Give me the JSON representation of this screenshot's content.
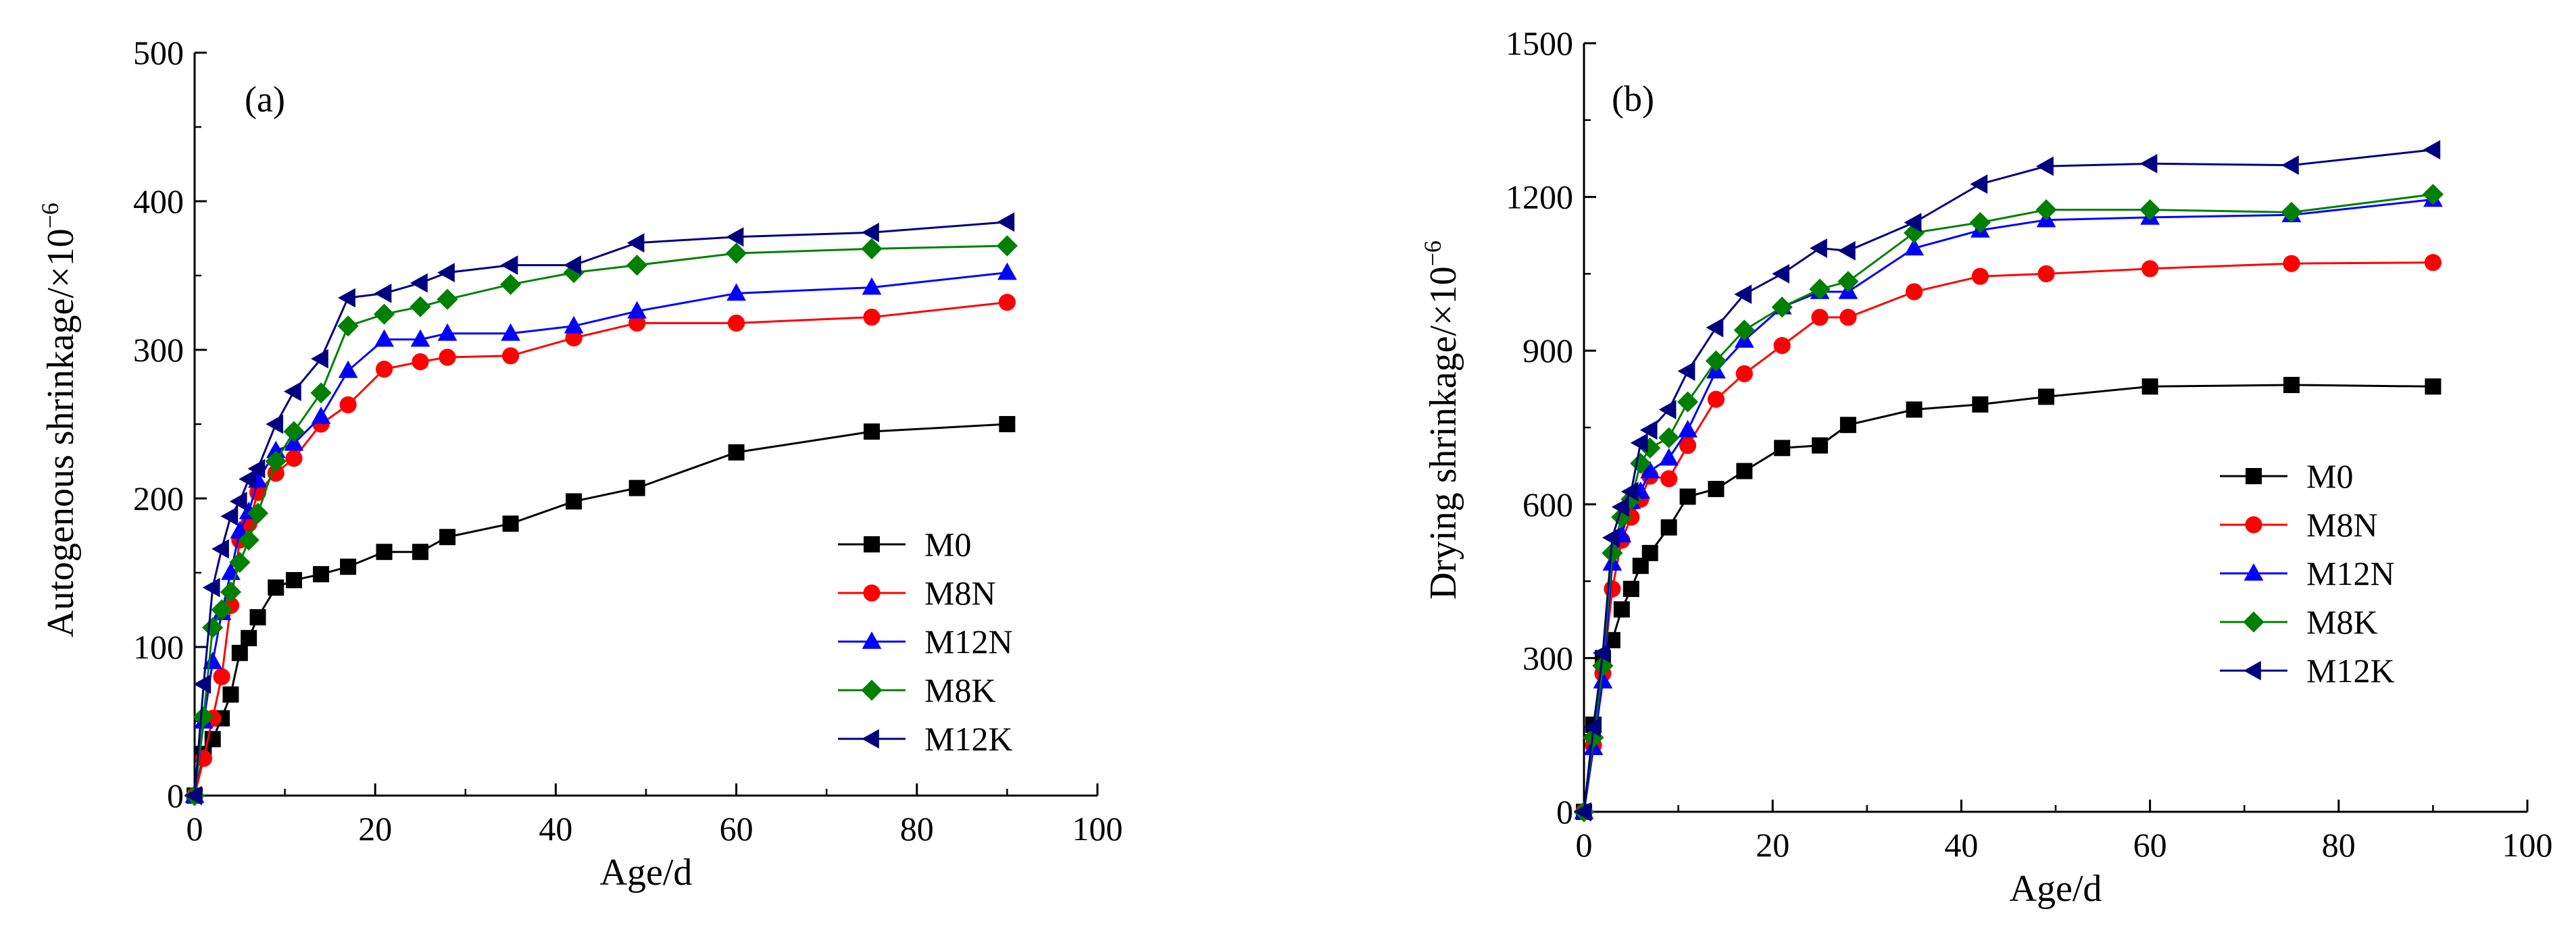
{
  "chart_data": [
    {
      "type": "line",
      "panel_label": "(a)",
      "xlabel": "Age/d",
      "ylabel": "Autogenous shrinkage/×10",
      "ylabel_exponent": "−6",
      "xlim": [
        0,
        100
      ],
      "ylim": [
        0,
        500
      ],
      "xticks": [
        0,
        20,
        40,
        60,
        80,
        100
      ],
      "yticks": [
        0,
        100,
        200,
        300,
        400,
        500
      ],
      "legend_position": "bottom-right",
      "series": [
        {
          "name": "M0",
          "color": "#000000",
          "marker": "square",
          "x": [
            0,
            1,
            2,
            3,
            4,
            5,
            6,
            7,
            9,
            11,
            14,
            17,
            21,
            25,
            28,
            35,
            42,
            49,
            60,
            75,
            90
          ],
          "y": [
            0,
            28,
            38,
            52,
            68,
            96,
            106,
            120,
            140,
            145,
            149,
            154,
            164,
            164,
            174,
            183,
            198,
            207,
            231,
            245,
            250
          ]
        },
        {
          "name": "M8N",
          "color": "#ff0000",
          "marker": "circle",
          "x": [
            0,
            1,
            2,
            3,
            4,
            5,
            6,
            7,
            9,
            11,
            14,
            17,
            21,
            25,
            28,
            35,
            42,
            49,
            60,
            75,
            90
          ],
          "y": [
            0,
            25,
            52,
            80,
            128,
            172,
            183,
            204,
            217,
            227,
            250,
            263,
            287,
            292,
            295,
            296,
            308,
            318,
            318,
            322,
            332
          ]
        },
        {
          "name": "M12N",
          "color": "#0000ff",
          "marker": "triangle",
          "x": [
            0,
            1,
            2,
            3,
            4,
            5,
            6,
            7,
            9,
            11,
            14,
            17,
            21,
            25,
            28,
            35,
            42,
            49,
            60,
            75,
            90
          ],
          "y": [
            0,
            50,
            90,
            123,
            150,
            178,
            191,
            212,
            232,
            237,
            255,
            286,
            307,
            307,
            311,
            311,
            316,
            326,
            338,
            342,
            352
          ]
        },
        {
          "name": "M8K",
          "color": "#008000",
          "marker": "diamond",
          "x": [
            0,
            1,
            2,
            3,
            4,
            5,
            6,
            7,
            9,
            11,
            14,
            17,
            21,
            25,
            28,
            35,
            42,
            49,
            60,
            75,
            90
          ],
          "y": [
            0,
            53,
            113,
            125,
            137,
            157,
            172,
            190,
            225,
            245,
            271,
            316,
            324,
            329,
            334,
            344,
            352,
            357,
            365,
            368,
            370
          ]
        },
        {
          "name": "M12K",
          "color": "#000080",
          "marker": "triangle-left",
          "x": [
            0,
            1,
            2,
            3,
            4,
            5,
            6,
            7,
            9,
            11,
            14,
            17,
            21,
            25,
            28,
            35,
            42,
            49,
            60,
            75,
            90
          ],
          "y": [
            0,
            75,
            140,
            166,
            188,
            198,
            213,
            220,
            250,
            272,
            294,
            335,
            338,
            345,
            352,
            357,
            357,
            372,
            376,
            379,
            386
          ]
        }
      ]
    },
    {
      "type": "line",
      "panel_label": "(b)",
      "xlabel": "Age/d",
      "ylabel": "Drying shrinkage/×10",
      "ylabel_exponent": "−6",
      "xlim": [
        0,
        100
      ],
      "ylim": [
        0,
        1500
      ],
      "xticks": [
        0,
        20,
        40,
        60,
        80,
        100
      ],
      "yticks": [
        0,
        300,
        600,
        900,
        1200,
        1500
      ],
      "legend_position": "right",
      "series": [
        {
          "name": "M0",
          "color": "#000000",
          "marker": "square",
          "x": [
            0,
            1,
            2,
            3,
            4,
            5,
            6,
            7,
            9,
            11,
            14,
            17,
            21,
            25,
            28,
            35,
            42,
            49,
            60,
            75,
            90
          ],
          "y": [
            0,
            170,
            300,
            335,
            395,
            435,
            480,
            505,
            555,
            615,
            630,
            665,
            710,
            715,
            755,
            785,
            795,
            810,
            830,
            833,
            830
          ]
        },
        {
          "name": "M8N",
          "color": "#ff0000",
          "marker": "circle",
          "x": [
            0,
            1,
            2,
            3,
            4,
            5,
            6,
            7,
            9,
            11,
            14,
            17,
            21,
            25,
            28,
            35,
            42,
            49,
            60,
            75,
            90
          ],
          "y": [
            0,
            130,
            270,
            435,
            530,
            575,
            610,
            655,
            650,
            715,
            805,
            855,
            910,
            965,
            965,
            1015,
            1045,
            1050,
            1060,
            1070,
            1072
          ]
        },
        {
          "name": "M12N",
          "color": "#0000ff",
          "marker": "triangle",
          "x": [
            0,
            1,
            2,
            3,
            4,
            5,
            6,
            7,
            9,
            11,
            14,
            17,
            21,
            25,
            28,
            35,
            42,
            49,
            60,
            75,
            90
          ],
          "y": [
            0,
            125,
            255,
            485,
            540,
            605,
            625,
            665,
            690,
            745,
            860,
            920,
            985,
            1015,
            1015,
            1100,
            1135,
            1155,
            1160,
            1165,
            1195
          ]
        },
        {
          "name": "M8K",
          "color": "#008000",
          "marker": "diamond",
          "x": [
            0,
            1,
            2,
            3,
            4,
            5,
            6,
            7,
            9,
            11,
            14,
            17,
            21,
            25,
            28,
            35,
            42,
            49,
            60,
            75,
            90
          ],
          "y": [
            0,
            145,
            285,
            505,
            575,
            610,
            680,
            710,
            730,
            800,
            880,
            940,
            985,
            1020,
            1035,
            1130,
            1150,
            1175,
            1175,
            1170,
            1205
          ]
        },
        {
          "name": "M12K",
          "color": "#000080",
          "marker": "triangle-left",
          "x": [
            0,
            1,
            2,
            3,
            4,
            5,
            6,
            7,
            9,
            11,
            14,
            17,
            21,
            25,
            28,
            35,
            42,
            49,
            60,
            75,
            90
          ],
          "y": [
            0,
            165,
            310,
            535,
            595,
            625,
            720,
            745,
            785,
            860,
            945,
            1010,
            1050,
            1100,
            1095,
            1150,
            1225,
            1260,
            1265,
            1262,
            1292
          ]
        }
      ]
    }
  ]
}
